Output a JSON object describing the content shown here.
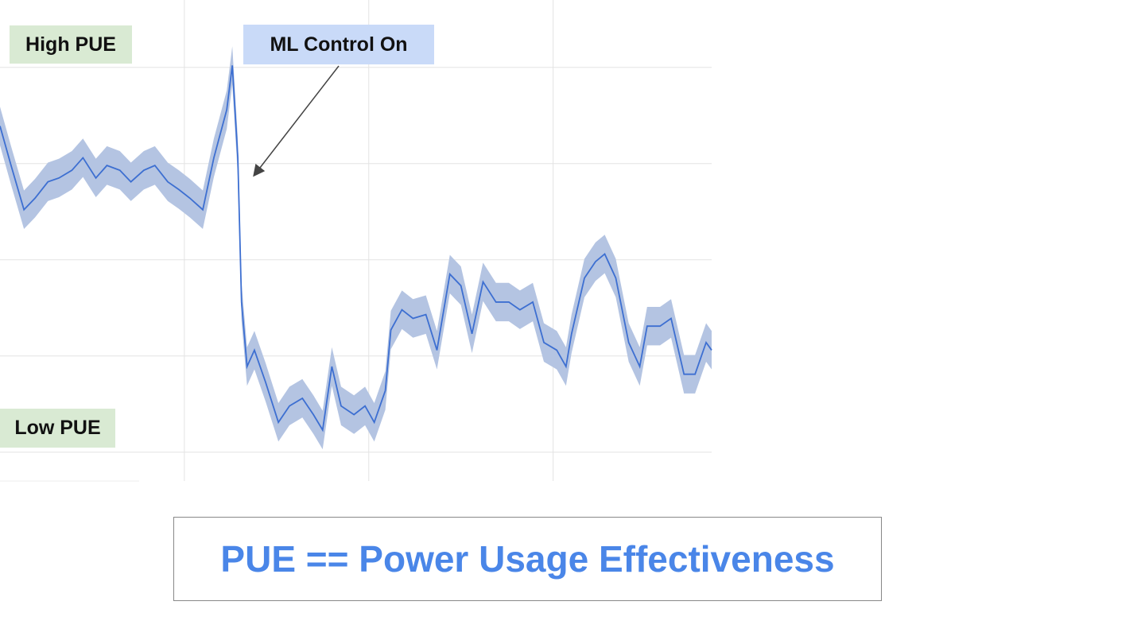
{
  "chart_data": {
    "type": "line",
    "x": [
      0,
      0.06,
      0.13,
      0.19,
      0.26,
      0.32,
      0.39,
      0.45,
      0.52,
      0.58,
      0.65,
      0.71,
      0.78,
      0.84,
      0.91,
      0.97,
      1.03,
      1.1,
      1.16,
      1.23,
      1.26,
      1.29,
      1.31,
      1.34,
      1.38,
      1.44,
      1.51,
      1.57,
      1.64,
      1.7,
      1.75,
      1.8,
      1.85,
      1.92,
      1.98,
      2.03,
      2.09,
      2.12,
      2.18,
      2.24,
      2.31,
      2.37,
      2.44,
      2.5,
      2.56,
      2.62,
      2.69,
      2.76,
      2.82,
      2.89,
      2.95,
      3.02,
      3.07,
      3.1,
      3.17,
      3.23,
      3.28,
      3.34,
      3.41,
      3.47,
      3.51,
      3.58,
      3.64,
      3.71,
      3.77,
      3.83,
      3.86
    ],
    "values": [
      3.39,
      2.98,
      2.52,
      2.64,
      2.81,
      2.85,
      2.93,
      3.06,
      2.85,
      2.98,
      2.93,
      2.81,
      2.93,
      2.98,
      2.81,
      2.73,
      2.64,
      2.52,
      3.06,
      3.56,
      4.02,
      3.06,
      1.56,
      0.89,
      1.06,
      0.73,
      0.31,
      0.48,
      0.56,
      0.39,
      0.23,
      0.89,
      0.48,
      0.39,
      0.48,
      0.31,
      0.64,
      1.27,
      1.48,
      1.39,
      1.43,
      1.06,
      1.85,
      1.73,
      1.23,
      1.77,
      1.56,
      1.56,
      1.48,
      1.56,
      1.14,
      1.06,
      0.89,
      1.23,
      1.81,
      1.98,
      2.06,
      1.81,
      1.14,
      0.89,
      1.31,
      1.31,
      1.39,
      0.81,
      0.81,
      1.14,
      1.06
    ],
    "band": 0.2,
    "color": "#3d6fd1",
    "band_color": "#b4c4e2",
    "xlim": [
      0,
      3.86
    ],
    "xticks": [
      1,
      2,
      3
    ],
    "ylim": [
      -0.3,
      4.7
    ],
    "yticks": [
      0,
      1,
      2,
      3,
      4
    ],
    "grid": true,
    "annotations": {
      "high": "High PUE",
      "ml": "ML Control On",
      "low": "Low PUE"
    },
    "caption": "PUE == Power Usage Effectiveness"
  }
}
